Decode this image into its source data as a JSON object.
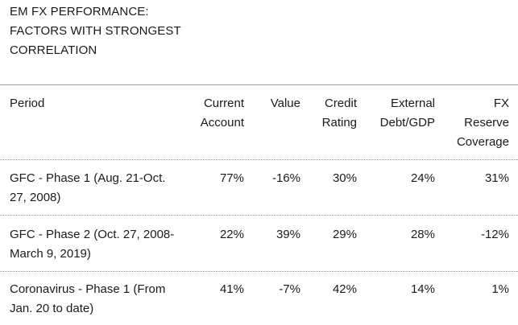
{
  "title": "EM FX PERFORMANCE: FACTORS WITH STRONGEST CORRELATION",
  "columns": {
    "period": "Period",
    "current_account": "Current Account",
    "value": "Value",
    "credit_rating": "Credit Rating",
    "external_debt": "External Debt/GDP",
    "fx_reserve": "FX Reserve Coverage"
  },
  "rows": [
    {
      "period": "GFC - Phase 1 (Aug. 21-Oct. 27, 2008)",
      "current_account": "77%",
      "value": "-16%",
      "credit_rating": "30%",
      "external_debt": "24%",
      "fx_reserve": "31%"
    },
    {
      "period": "GFC - Phase 2 (Oct. 27, 2008-March 9, 2019)",
      "current_account": "22%",
      "value": "39%",
      "credit_rating": "29%",
      "external_debt": "28%",
      "fx_reserve": "-12%"
    },
    {
      "period": "Coronavirus - Phase 1 (From Jan. 20 to date)",
      "current_account": "41%",
      "value": "-7%",
      "credit_rating": "42%",
      "external_debt": "14%",
      "fx_reserve": "1%"
    }
  ]
}
